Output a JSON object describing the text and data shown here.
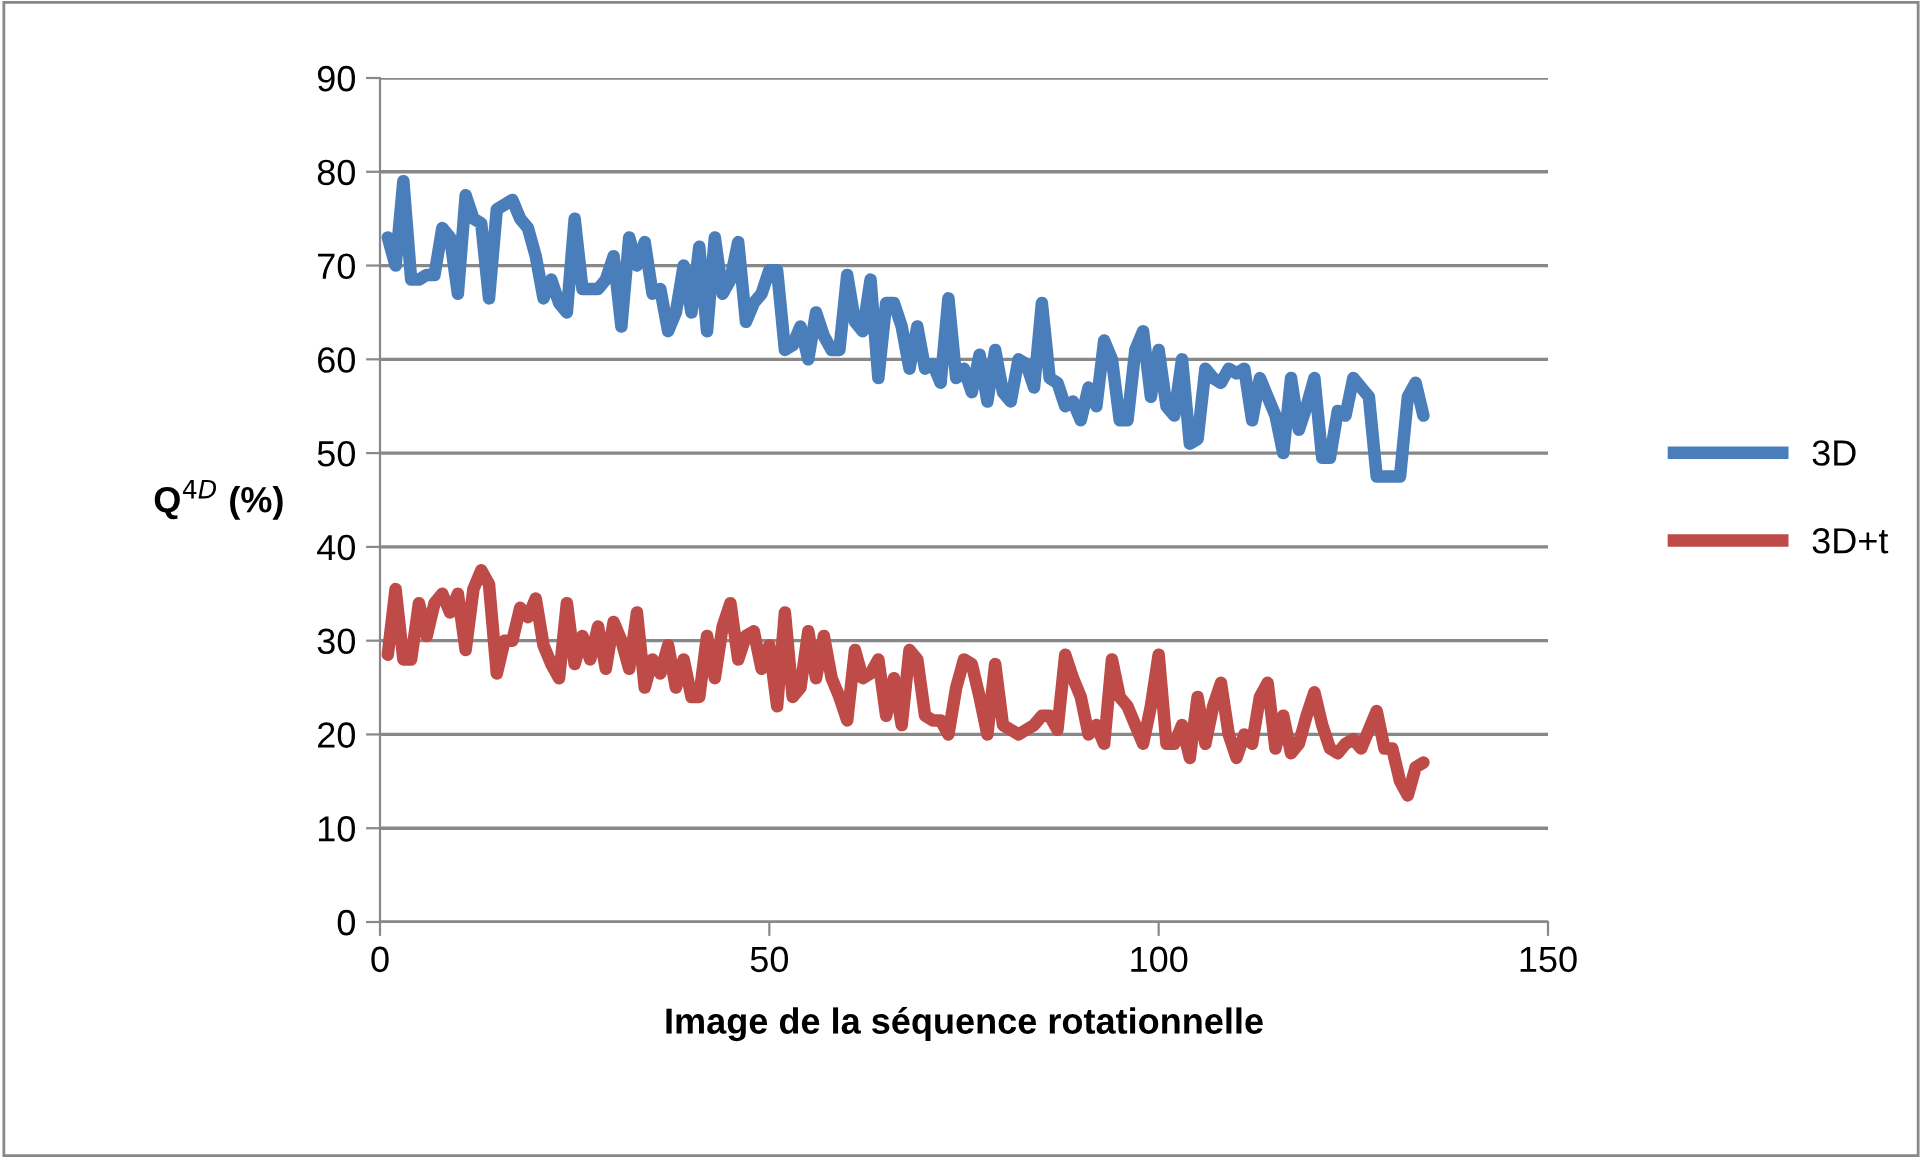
{
  "chart_data": {
    "type": "line",
    "xlabel": "Image de la séquence rotationnelle",
    "ylabel": "Q$^{4D}$ (%)",
    "xlim": [
      0,
      150
    ],
    "xticks": [
      0,
      50,
      100,
      150
    ],
    "ylim": [
      0,
      90
    ],
    "yticks": [
      0,
      10,
      20,
      30,
      40,
      50,
      60,
      70,
      80,
      90
    ],
    "grid": "y",
    "legend": "right",
    "marker": "none",
    "line_style": "solid",
    "x": [
      1,
      2,
      3,
      4,
      5,
      6,
      7,
      8,
      9,
      10,
      11,
      12,
      13,
      14,
      15,
      16,
      17,
      18,
      19,
      20,
      21,
      22,
      23,
      24,
      25,
      26,
      27,
      28,
      29,
      30,
      31,
      32,
      33,
      34,
      35,
      36,
      37,
      38,
      39,
      40,
      41,
      42,
      43,
      44,
      45,
      46,
      47,
      48,
      49,
      50,
      51,
      52,
      53,
      54,
      55,
      56,
      57,
      58,
      59,
      60,
      61,
      62,
      63,
      64,
      65,
      66,
      67,
      68,
      69,
      70,
      71,
      72,
      73,
      74,
      75,
      76,
      77,
      78,
      79,
      80,
      81,
      82,
      83,
      84,
      85,
      86,
      87,
      88,
      89,
      90,
      91,
      92,
      93,
      94,
      95,
      96,
      97,
      98,
      99,
      100,
      101,
      102,
      103,
      104,
      105,
      106,
      107,
      108,
      109,
      110,
      111,
      112,
      113,
      114,
      115,
      116,
      117,
      118,
      119,
      120,
      121,
      122,
      123,
      124,
      125,
      126,
      127,
      128,
      129,
      130,
      131,
      132,
      133,
      134
    ],
    "series": [
      {
        "name": "3D",
        "color": "#4a7ebb",
        "values": [
          73,
          70,
          79,
          68.5,
          68.5,
          69,
          69,
          74,
          73,
          67,
          77.5,
          75,
          74.5,
          66.5,
          76,
          76.5,
          77,
          75,
          74,
          71,
          66.5,
          68.5,
          66,
          65,
          75,
          67.5,
          67.5,
          67.5,
          68.5,
          71,
          63.5,
          73,
          70,
          72.5,
          67,
          67.5,
          63,
          65,
          70,
          65,
          72,
          63,
          73,
          67,
          68.5,
          72.5,
          64,
          66,
          67,
          69.5,
          69.5,
          61,
          61.5,
          63.5,
          60,
          65,
          62.5,
          61,
          61,
          69,
          64,
          63,
          68.5,
          58,
          66,
          66,
          63.5,
          59,
          63.5,
          59,
          59.5,
          57.5,
          66.5,
          58,
          59,
          56.5,
          60.5,
          55.5,
          61,
          56.5,
          55.5,
          60,
          59.5,
          57,
          66,
          58,
          57.5,
          55,
          55.5,
          53.5,
          57,
          55,
          62,
          60,
          53.5,
          53.5,
          61,
          63,
          56,
          61,
          55,
          54,
          60,
          51,
          51.5,
          59,
          58,
          57.5,
          59,
          58.5,
          59,
          53.5,
          58,
          56,
          54,
          50,
          58,
          52.5,
          55,
          58,
          49.5,
          49.5,
          54.5,
          54,
          58,
          57,
          56,
          47.5,
          47.5,
          47.5,
          47.5,
          56,
          57.5,
          54
        ]
      },
      {
        "name": "3D+t",
        "color": "#be4b48",
        "values": [
          28.5,
          35.5,
          28,
          28,
          34,
          30.5,
          34,
          35,
          33,
          35,
          29,
          35.5,
          37.5,
          36,
          26.5,
          30,
          30,
          33.5,
          32.5,
          34.5,
          29.5,
          27.5,
          26,
          34,
          27.5,
          30.5,
          28,
          31.5,
          27,
          32,
          30,
          27,
          33,
          25,
          28,
          26.5,
          29.5,
          25,
          28,
          24,
          24,
          30.5,
          26,
          31.5,
          34,
          28,
          30.5,
          31,
          27,
          29.5,
          23,
          33,
          24,
          25,
          31,
          26,
          30.5,
          26,
          24,
          21.5,
          29,
          26,
          26.5,
          28,
          22,
          26,
          21,
          29,
          28,
          22,
          21.5,
          21.5,
          20,
          25,
          28,
          27.5,
          24,
          20,
          27.5,
          21,
          20.5,
          20,
          20.5,
          21,
          22,
          22,
          20.5,
          28.5,
          26,
          24,
          20,
          21,
          19,
          28,
          24,
          23,
          21,
          19,
          23,
          28.5,
          19,
          19,
          21,
          17.5,
          24,
          19,
          23,
          25.5,
          20,
          17.5,
          20,
          19,
          24,
          25.5,
          18.5,
          22,
          18,
          19,
          22,
          24.5,
          21,
          18.5,
          18,
          19,
          19.5,
          18.5,
          20.5,
          22.5,
          18.5,
          18.5,
          15,
          13.5,
          16.5,
          17
        ]
      }
    ]
  }
}
